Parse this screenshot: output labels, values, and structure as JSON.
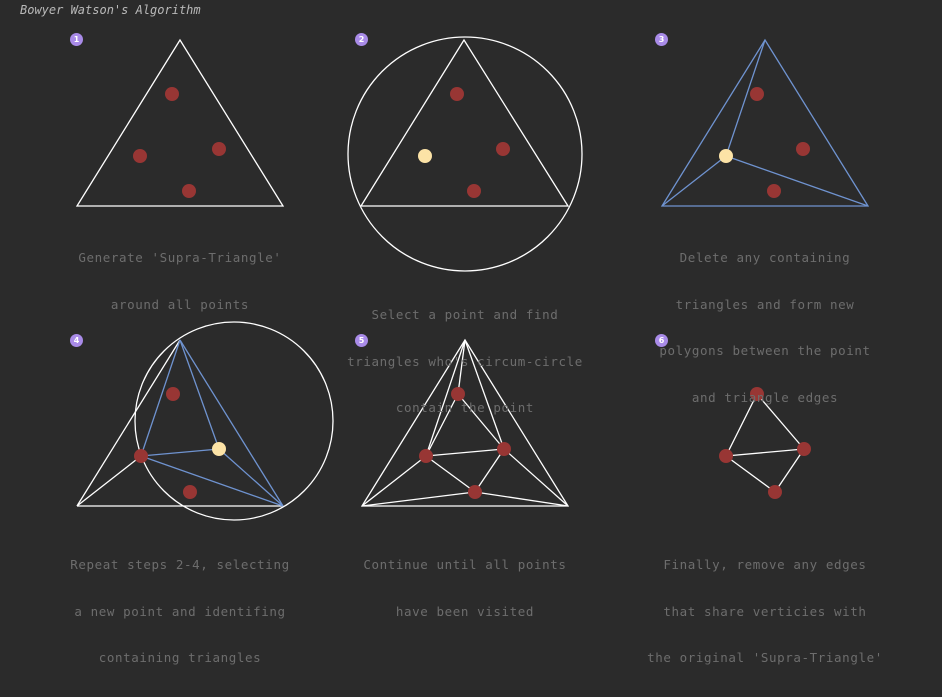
{
  "header": {
    "title": "Bowyer Watson's Algorithm"
  },
  "colors": {
    "background": "#2b2b2b",
    "edge": "#ffffff",
    "new_edge": "#6f93d0",
    "point": "#983634",
    "selected_point": "#fce3a6",
    "badge": "#a98be8",
    "caption": "#6d6d6d"
  },
  "steps": [
    {
      "number": "1",
      "caption": [
        "Generate 'Supra-Triangle'",
        "around all points"
      ]
    },
    {
      "number": "2",
      "caption": [
        "Select a point and find",
        "triangles who's circum-circle",
        "contain the point"
      ]
    },
    {
      "number": "3",
      "caption": [
        "Delete any containing",
        "triangles and form new",
        "polygons between the point",
        "and triangle edges"
      ]
    },
    {
      "number": "4",
      "caption": [
        "Repeat steps 2-4, selecting",
        "a new point and identifing",
        "containing triangles"
      ]
    },
    {
      "number": "5",
      "caption": [
        "Continue until all points",
        "have been visited"
      ]
    },
    {
      "number": "6",
      "caption": [
        "Finally, remove any edges",
        "that share verticies with",
        "the original 'Supra-Triangle'"
      ]
    }
  ]
}
